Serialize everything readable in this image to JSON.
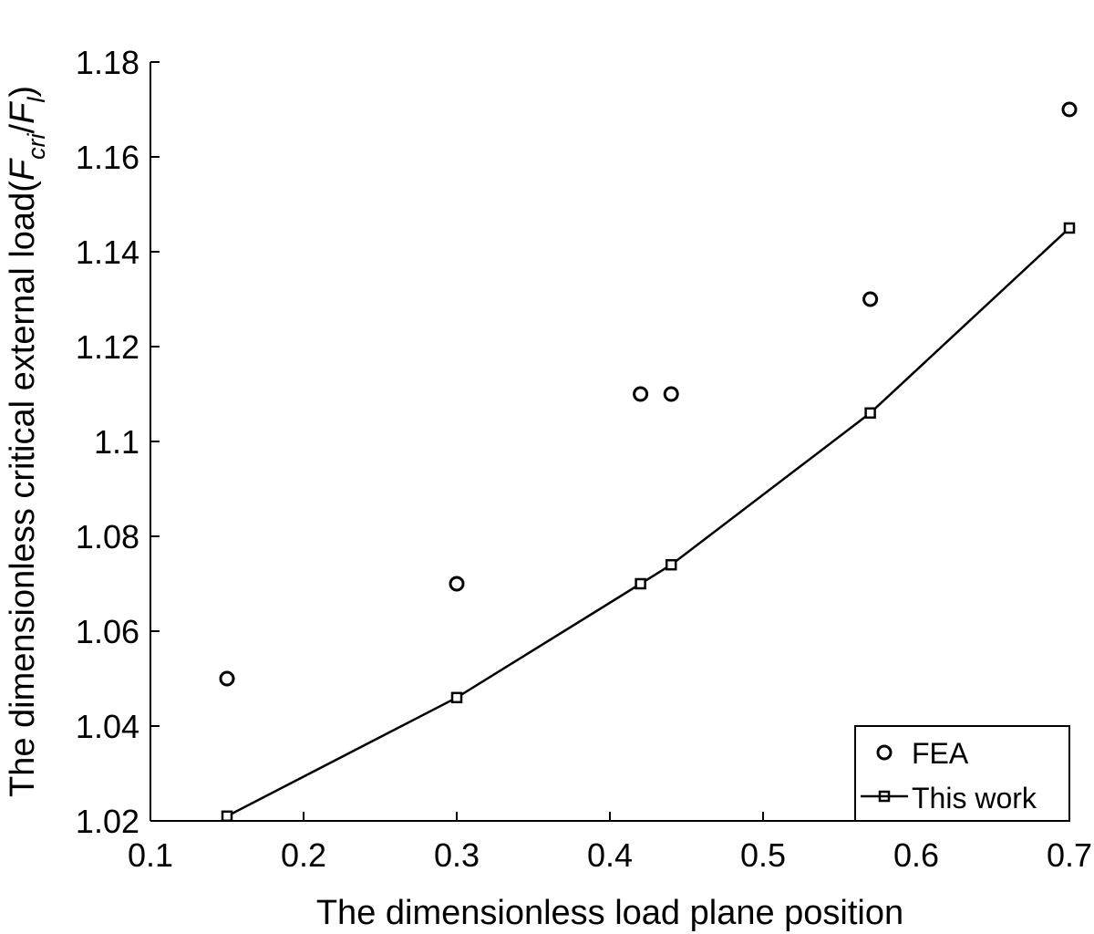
{
  "chart_data": {
    "type": "scatter",
    "title": "",
    "xlabel": "The dimensionless load plane position",
    "ylabel": {
      "main": "The dimensionless critical external load(",
      "f1": "F",
      "sub1": "cri",
      "sep": "/",
      "f2": "F",
      "sub2": "l",
      "close": ")"
    },
    "xlim": [
      0.1,
      0.7
    ],
    "ylim": [
      1.02,
      1.18
    ],
    "x_ticks": [
      "0.1",
      "0.2",
      "0.3",
      "0.4",
      "0.5",
      "0.6",
      "0.7"
    ],
    "y_ticks": [
      "1.02",
      "1.04",
      "1.06",
      "1.08",
      "1.1",
      "1.12",
      "1.14",
      "1.16",
      "1.18"
    ],
    "grid": false,
    "legend_position": "bottom-right",
    "series": [
      {
        "name": "FEA",
        "style": "circle-markers",
        "x": [
          0.15,
          0.3,
          0.42,
          0.44,
          0.57,
          0.7
        ],
        "y": [
          1.05,
          1.07,
          1.11,
          1.11,
          1.13,
          1.17
        ]
      },
      {
        "name": "This work",
        "style": "line-square-markers",
        "x": [
          0.15,
          0.3,
          0.42,
          0.44,
          0.57,
          0.7
        ],
        "y": [
          1.021,
          1.046,
          1.07,
          1.074,
          1.106,
          1.145
        ]
      }
    ],
    "colors": {
      "line": "#000000",
      "background": "#ffffff"
    }
  }
}
